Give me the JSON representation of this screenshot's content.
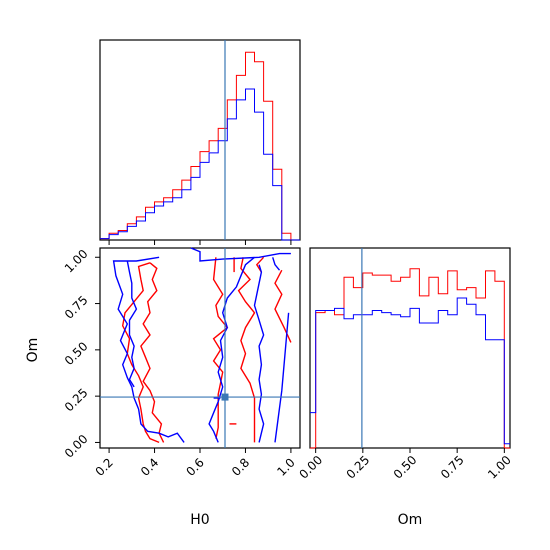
{
  "chart_data": [
    {
      "type": "histogram",
      "panel": "H0 marginal",
      "xlabel": "",
      "ylabel": "",
      "xlim": [
        0.16,
        1.04
      ],
      "bin_edges": [
        0.16,
        0.2,
        0.24,
        0.28,
        0.32,
        0.36,
        0.4,
        0.44,
        0.48,
        0.52,
        0.56,
        0.6,
        0.64,
        0.68,
        0.72,
        0.76,
        0.8,
        0.84,
        0.88,
        0.92,
        0.96,
        1.0,
        1.04
      ],
      "series": [
        {
          "color": "#ff0000",
          "values": [
            1,
            5,
            7,
            12,
            17,
            24,
            28,
            31,
            37,
            44,
            54,
            65,
            73,
            82,
            103,
            121,
            138,
            131,
            102,
            52,
            5,
            0
          ]
        },
        {
          "color": "#0000ff",
          "values": [
            1,
            4,
            6,
            10,
            14,
            20,
            25,
            28,
            31,
            37,
            46,
            57,
            64,
            73,
            89,
            103,
            111,
            94,
            63,
            40,
            0,
            0
          ]
        }
      ],
      "truth_line": {
        "x": 0.71,
        "color": "#3a77b5"
      },
      "x_ticks": []
    },
    {
      "type": "contour",
      "panel": "H0 vs Om joint",
      "xlabel": "H0",
      "ylabel": "Om",
      "xlim": [
        0.16,
        1.04
      ],
      "ylim": [
        -0.03,
        1.05
      ],
      "x_ticks": [
        "0.2",
        "0.4",
        "0.6",
        "0.8",
        "1.0"
      ],
      "y_ticks": [
        "0.00",
        "0.25",
        "0.50",
        "0.75",
        "1.00"
      ],
      "series": [
        {
          "color": "#ff0000",
          "paths": [
            [
              [
                0.38,
                0.97
              ],
              [
                0.33,
                0.95
              ],
              [
                0.34,
                0.88
              ],
              [
                0.35,
                0.82
              ],
              [
                0.31,
                0.76
              ],
              [
                0.27,
                0.7
              ],
              [
                0.26,
                0.63
              ],
              [
                0.29,
                0.56
              ],
              [
                0.28,
                0.48
              ],
              [
                0.3,
                0.42
              ],
              [
                0.33,
                0.36
              ],
              [
                0.35,
                0.3
              ],
              [
                0.33,
                0.24
              ],
              [
                0.34,
                0.18
              ],
              [
                0.35,
                0.1
              ],
              [
                0.36,
                0.06
              ],
              [
                0.38,
                0.02
              ],
              [
                0.42,
                0.0
              ]
            ],
            [
              [
                0.44,
                0.0
              ],
              [
                0.42,
                0.05
              ],
              [
                0.43,
                0.1
              ],
              [
                0.39,
                0.16
              ],
              [
                0.4,
                0.22
              ],
              [
                0.38,
                0.28
              ],
              [
                0.35,
                0.33
              ],
              [
                0.38,
                0.4
              ],
              [
                0.36,
                0.46
              ],
              [
                0.34,
                0.52
              ],
              [
                0.38,
                0.58
              ],
              [
                0.35,
                0.64
              ],
              [
                0.38,
                0.7
              ],
              [
                0.37,
                0.76
              ],
              [
                0.41,
                0.82
              ],
              [
                0.39,
                0.88
              ],
              [
                0.41,
                0.94
              ],
              [
                0.38,
                0.97
              ]
            ],
            [
              [
                0.67,
                1.0
              ],
              [
                0.66,
                0.88
              ],
              [
                0.7,
                0.8
              ],
              [
                0.67,
                0.74
              ],
              [
                0.68,
                0.68
              ],
              [
                0.72,
                0.62
              ],
              [
                0.66,
                0.56
              ],
              [
                0.69,
                0.5
              ],
              [
                0.66,
                0.44
              ],
              [
                0.7,
                0.38
              ],
              [
                0.69,
                0.32
              ],
              [
                0.68,
                0.26
              ],
              [
                0.68,
                0.18
              ],
              [
                0.68,
                0.08
              ],
              [
                0.67,
                0.02
              ]
            ],
            [
              [
                0.79,
                1.0
              ],
              [
                0.78,
                0.94
              ],
              [
                0.82,
                0.88
              ],
              [
                0.77,
                0.82
              ],
              [
                0.8,
                0.76
              ],
              [
                0.84,
                0.7
              ],
              [
                0.8,
                0.62
              ],
              [
                0.78,
                0.55
              ],
              [
                0.8,
                0.48
              ],
              [
                0.78,
                0.4
              ],
              [
                0.82,
                0.32
              ],
              [
                0.84,
                0.24
              ],
              [
                0.84,
                0.16
              ],
              [
                0.84,
                0.08
              ],
              [
                0.84,
                0.0
              ]
            ],
            [
              [
                0.96,
                0.93
              ],
              [
                0.93,
                0.86
              ],
              [
                0.96,
                0.8
              ],
              [
                0.93,
                0.72
              ],
              [
                0.97,
                0.62
              ],
              [
                1.0,
                0.54
              ]
            ],
            [
              [
                0.75,
                1.0
              ],
              [
                0.75,
                0.92
              ]
            ],
            [
              [
                0.88,
                1.0
              ],
              [
                0.85,
                0.96
              ],
              [
                0.87,
                0.92
              ]
            ],
            [
              [
                0.73,
                0.1
              ],
              [
                0.76,
                0.1
              ]
            ]
          ]
        },
        {
          "color": "#0000ff",
          "paths": [
            [
              [
                0.42,
                1.0
              ],
              [
                0.32,
                0.98
              ],
              [
                0.26,
                0.98
              ],
              [
                0.22,
                0.98
              ],
              [
                0.23,
                0.9
              ],
              [
                0.26,
                0.8
              ],
              [
                0.24,
                0.72
              ],
              [
                0.28,
                0.64
              ],
              [
                0.25,
                0.55
              ],
              [
                0.28,
                0.48
              ],
              [
                0.26,
                0.42
              ],
              [
                0.28,
                0.35
              ],
              [
                0.3,
                0.3
              ],
              [
                0.31,
                0.24
              ],
              [
                0.33,
                0.18
              ],
              [
                0.34,
                0.1
              ],
              [
                0.37,
                0.06
              ],
              [
                0.42,
                0.05
              ],
              [
                0.46,
                0.03
              ],
              [
                0.5,
                0.05
              ],
              [
                0.53,
                0.0
              ]
            ],
            [
              [
                0.28,
                0.98
              ],
              [
                0.29,
                0.92
              ],
              [
                0.3,
                0.86
              ],
              [
                0.3,
                0.78
              ],
              [
                0.32,
                0.72
              ],
              [
                0.29,
                0.66
              ],
              [
                0.29,
                0.58
              ],
              [
                0.31,
                0.52
              ],
              [
                0.3,
                0.46
              ],
              [
                0.31,
                0.4
              ],
              [
                0.29,
                0.34
              ],
              [
                0.31,
                0.3
              ]
            ],
            [
              [
                0.56,
                1.05
              ],
              [
                0.6,
                1.03
              ],
              [
                0.6,
                0.98
              ],
              [
                0.7,
                0.99
              ],
              [
                0.86,
                1.0
              ],
              [
                0.95,
                1.02
              ],
              [
                1.0,
                1.02
              ]
            ],
            [
              [
                0.68,
                0.0
              ],
              [
                0.66,
                0.06
              ],
              [
                0.64,
                0.1
              ],
              [
                0.66,
                0.16
              ],
              [
                0.68,
                0.22
              ],
              [
                0.7,
                0.3
              ],
              [
                0.68,
                0.38
              ],
              [
                0.7,
                0.46
              ],
              [
                0.69,
                0.55
              ],
              [
                0.72,
                0.62
              ],
              [
                0.7,
                0.7
              ],
              [
                0.72,
                0.78
              ],
              [
                0.76,
                0.84
              ],
              [
                0.78,
                0.9
              ],
              [
                0.8,
                0.96
              ],
              [
                0.84,
                1.0
              ]
            ],
            [
              [
                0.86,
                0.0
              ],
              [
                0.88,
                0.1
              ],
              [
                0.86,
                0.18
              ],
              [
                0.87,
                0.26
              ],
              [
                0.86,
                0.34
              ],
              [
                0.87,
                0.42
              ],
              [
                0.86,
                0.52
              ],
              [
                0.88,
                0.58
              ],
              [
                0.86,
                0.66
              ],
              [
                0.84,
                0.74
              ],
              [
                0.85,
                0.8
              ],
              [
                0.86,
                0.86
              ],
              [
                0.87,
                0.92
              ],
              [
                0.86,
                0.96
              ]
            ],
            [
              [
                0.92,
                1.0
              ],
              [
                0.93,
                0.96
              ],
              [
                0.95,
                0.93
              ]
            ],
            [
              [
                0.93,
                0.0
              ],
              [
                0.96,
                0.28
              ],
              [
                0.99,
                0.7
              ]
            ],
            [
              [
                0.66,
                0.24
              ],
              [
                0.69,
                0.24
              ]
            ]
          ]
        }
      ],
      "truth_lines": {
        "x": 0.71,
        "y": 0.245,
        "color": "#3a77b5"
      }
    },
    {
      "type": "histogram",
      "panel": "Om marginal",
      "xlabel": "Om",
      "ylabel": "",
      "xlim": [
        -0.03,
        1.03
      ],
      "x_ticks": [
        "0.00",
        "0.25",
        "0.50",
        "0.75",
        "1.00"
      ],
      "bin_edges": [
        -0.03,
        0.0,
        0.05,
        0.1,
        0.15,
        0.2,
        0.25,
        0.3,
        0.35,
        0.4,
        0.45,
        0.5,
        0.55,
        0.6,
        0.65,
        0.7,
        0.75,
        0.8,
        0.85,
        0.9,
        0.95,
        1.0,
        1.03
      ],
      "series": [
        {
          "color": "#ff0000",
          "values": [
            0,
            65,
            66,
            64,
            82,
            77,
            84,
            83,
            83,
            80,
            82,
            86,
            73,
            82,
            74,
            85,
            76,
            77,
            72,
            85,
            80,
            0
          ]
        },
        {
          "color": "#0000ff",
          "values": [
            17,
            66,
            66,
            67,
            62,
            64,
            64,
            66,
            65,
            64,
            63,
            67,
            60,
            60,
            66,
            64,
            72,
            69,
            64,
            52,
            52,
            2
          ]
        }
      ],
      "truth_line": {
        "x": 0.245,
        "color": "#3a77b5"
      }
    }
  ]
}
